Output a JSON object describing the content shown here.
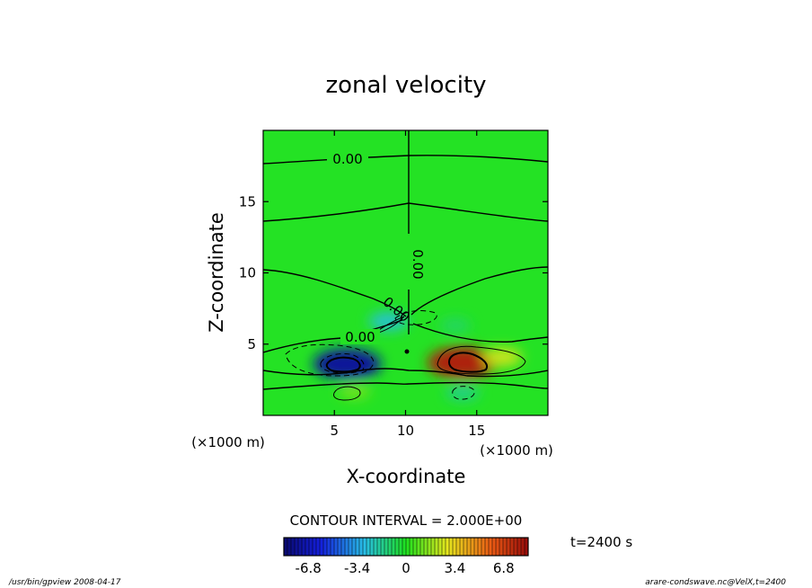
{
  "chart_data": {
    "type": "heatmap",
    "title": "zonal velocity",
    "xlabel": "X-coordinate",
    "ylabel": "Z-coordinate",
    "x_units": "(×1000 m)",
    "y_units": "(×1000 m)",
    "xlim": [
      0,
      20
    ],
    "ylim": [
      0,
      20
    ],
    "x_ticks": [
      "5",
      "10",
      "15"
    ],
    "y_ticks": [
      "5",
      "10",
      "15"
    ],
    "contour_interval_text": "CONTOUR INTERVAL = 2.000E+00",
    "contour_labels": [
      "0.00",
      "0.00",
      "0.00",
      "0.00"
    ],
    "colorbar": {
      "min": -8.5,
      "max": 8.5,
      "tick_labels": [
        "-6.8",
        "-3.4",
        "0",
        "3.4",
        "6.8"
      ],
      "tick_values": [
        -6.8,
        -3.4,
        0,
        3.4,
        6.8
      ]
    },
    "features": [
      {
        "name": "negative core",
        "x": 5.9,
        "z": 3.6,
        "value": -7.5
      },
      {
        "name": "positive core",
        "x": 14.0,
        "z": 3.7,
        "value": 7.8
      },
      {
        "name": "negative lobe",
        "x": 8.8,
        "z": 6.6,
        "value": -2.5
      },
      {
        "name": "positive lobe",
        "x": 16.8,
        "z": 4.1,
        "value": 2.5
      },
      {
        "name": "negative lobe",
        "x": 13.5,
        "z": 6.3,
        "value": -1.0
      },
      {
        "name": "positive lobe",
        "x": 6.4,
        "z": 1.7,
        "value": 1.2
      },
      {
        "name": "negative lobe",
        "x": 14.0,
        "z": 1.6,
        "value": -1.5
      }
    ]
  },
  "time_label": "t=2400 s",
  "footer_left": "/usr/bin/gpview   2008-04-17",
  "footer_right": "arare-condswave.nc@VelX,t=2400",
  "colors": {
    "negative": "#1010c8",
    "zero": "#20e020",
    "positive": "#e02010"
  }
}
